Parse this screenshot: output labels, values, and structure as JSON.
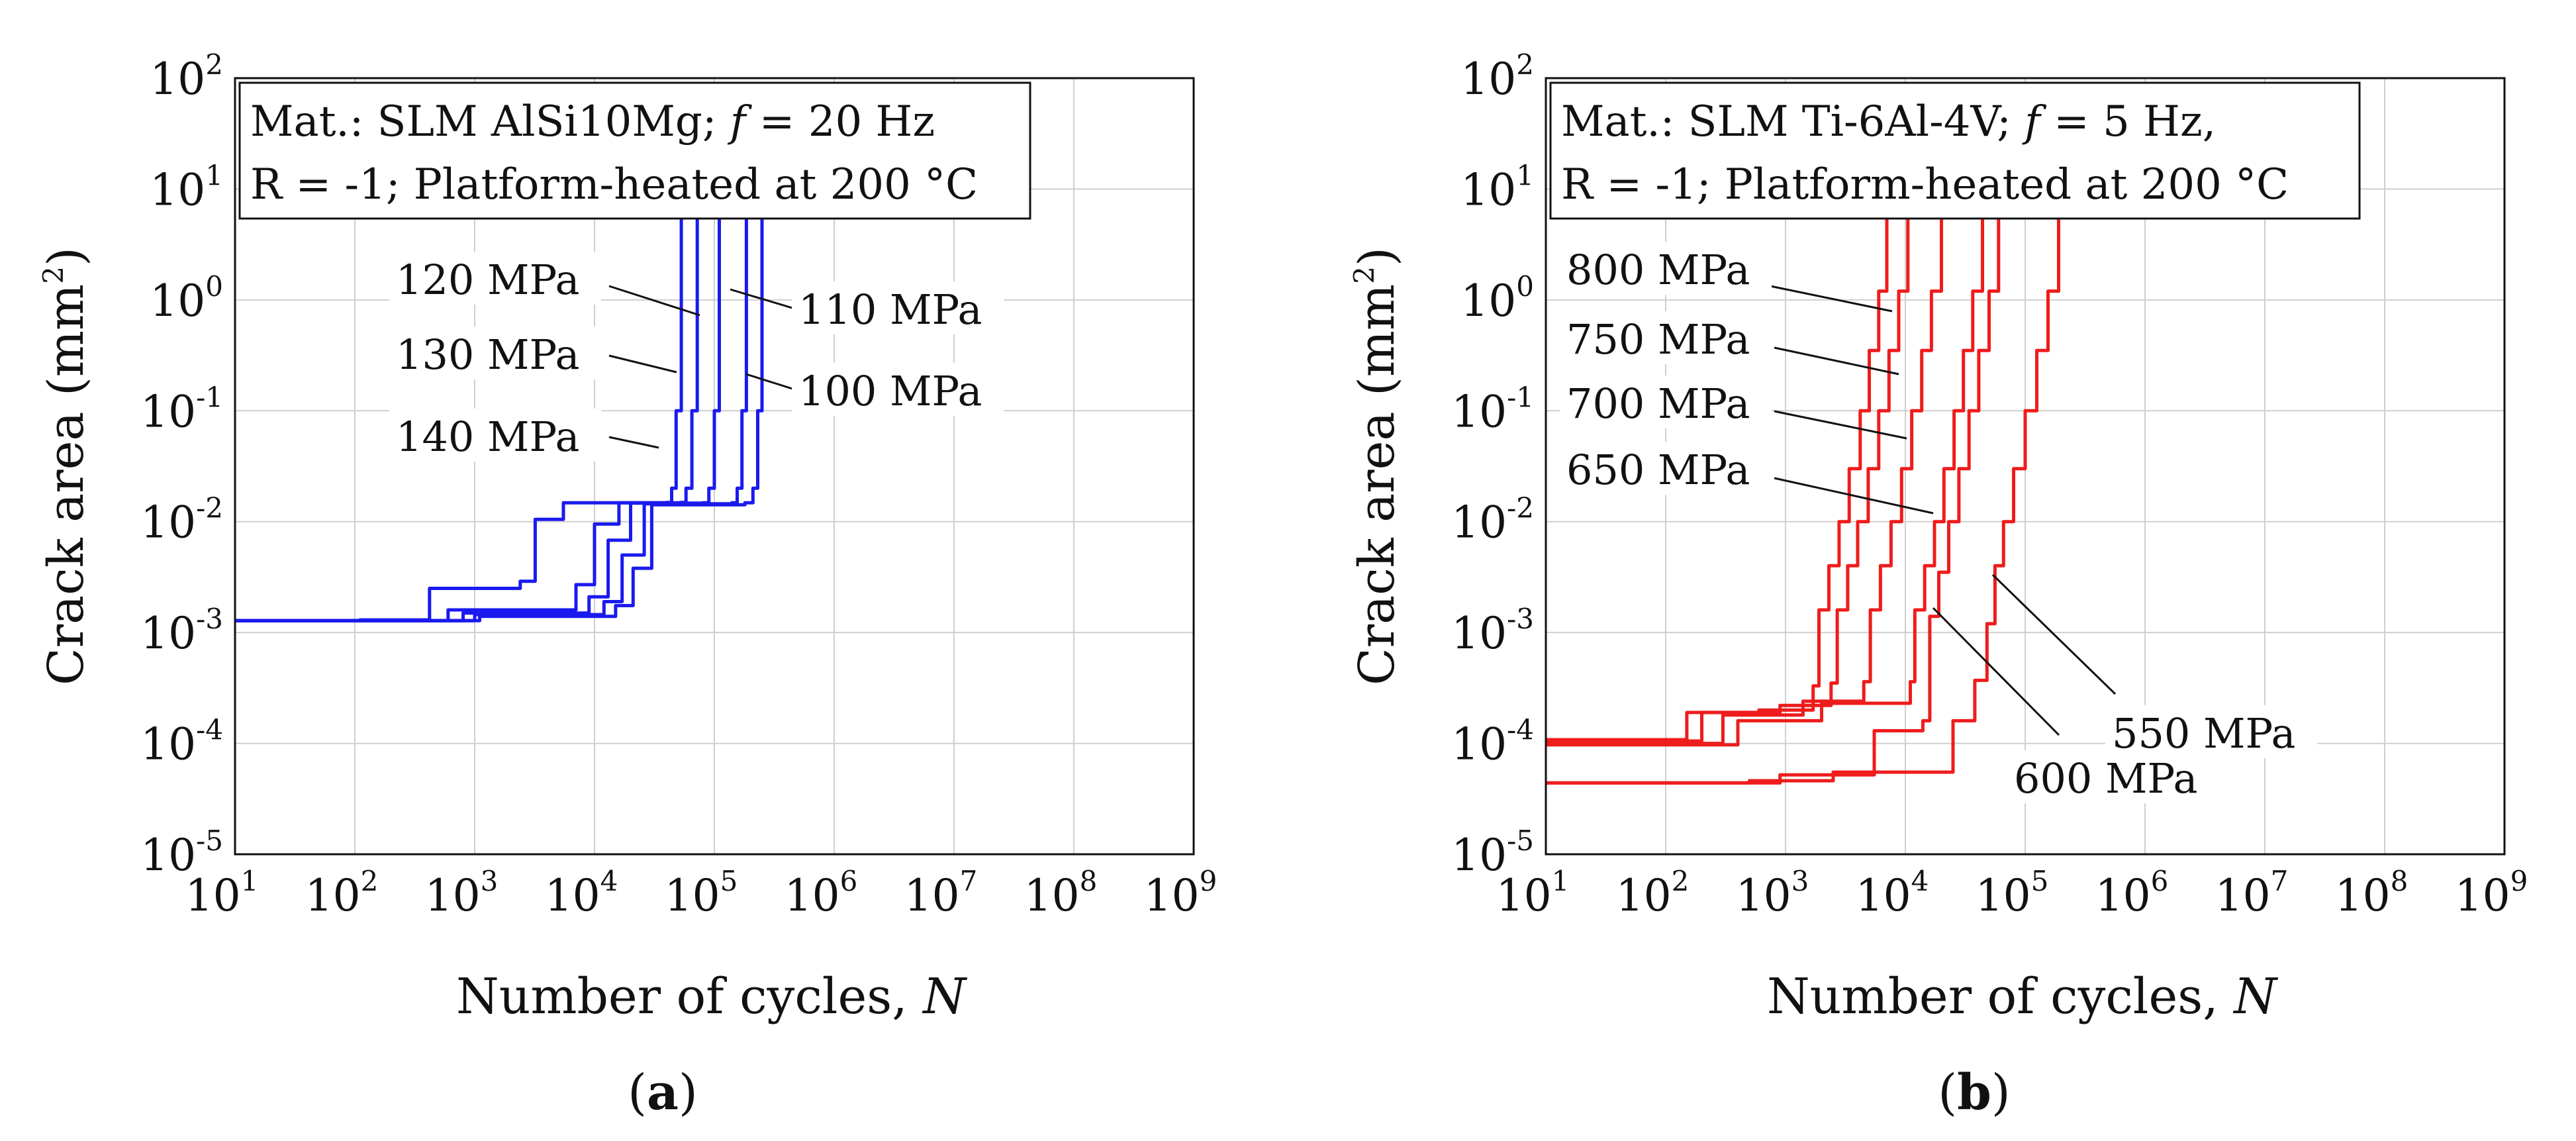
{
  "chart_data": [
    {
      "id": "a",
      "type": "line",
      "subfigure_label": "a",
      "info_line1": {
        "prefix": "Mat.: SLM AlSi10Mg; ",
        "f_symbol": "f",
        "suffix": " = 20 Hz"
      },
      "info_line2": "R = -1; Platform-heated at 200 °C",
      "xlabel": {
        "text": "Number of cycles, ",
        "symbol": "N"
      },
      "ylabel": {
        "text": "Crack area (mm",
        "sup": "2",
        "close": ")"
      },
      "x_scale": "log",
      "y_scale": "log",
      "xlim": [
        10,
        1000000000
      ],
      "ylim": [
        1e-05,
        100
      ],
      "grid": true,
      "color": "#1a1aee",
      "x_ticks": [
        {
          "base": "10",
          "exp": "1"
        },
        {
          "base": "10",
          "exp": "2"
        },
        {
          "base": "10",
          "exp": "3"
        },
        {
          "base": "10",
          "exp": "4"
        },
        {
          "base": "10",
          "exp": "5"
        },
        {
          "base": "10",
          "exp": "6"
        },
        {
          "base": "10",
          "exp": "7"
        },
        {
          "base": "10",
          "exp": "8"
        },
        {
          "base": "10",
          "exp": "9"
        }
      ],
      "y_ticks": [
        {
          "base": "10",
          "exp": "-5"
        },
        {
          "base": "10",
          "exp": "-4"
        },
        {
          "base": "10",
          "exp": "-3"
        },
        {
          "base": "10",
          "exp": "-2"
        },
        {
          "base": "10",
          "exp": "-1"
        },
        {
          "base": "10",
          "exp": "0"
        },
        {
          "base": "10",
          "exp": "1"
        },
        {
          "base": "10",
          "exp": "2"
        }
      ],
      "series": [
        {
          "name": "100 MPa",
          "x": [
            10,
            1100,
            15000,
            21000,
            30000,
            180000,
            210000,
            230000,
            250000
          ],
          "y": [
            0.00128,
            0.0014,
            0.00175,
            0.0038,
            0.0142,
            0.0148,
            0.02,
            0.1,
            8
          ]
        },
        {
          "name": "110 MPa",
          "x": [
            10,
            1000,
            12000,
            17000,
            26000,
            140000,
            155000,
            170000,
            185000
          ],
          "y": [
            0.00128,
            0.00145,
            0.0019,
            0.005,
            0.0145,
            0.0148,
            0.02,
            0.1,
            8
          ]
        },
        {
          "name": "120 MPa",
          "x": [
            10,
            800,
            9000,
            13000,
            20000,
            80000,
            90000,
            100000,
            110000
          ],
          "y": [
            0.00128,
            0.0015,
            0.0021,
            0.0068,
            0.0147,
            0.0148,
            0.02,
            0.1,
            8
          ]
        },
        {
          "name": "130 MPa",
          "x": [
            10,
            600,
            7000,
            10000,
            16000,
            52000,
            58000,
            65000,
            72000
          ],
          "y": [
            0.00128,
            0.0016,
            0.0027,
            0.0095,
            0.0148,
            0.0149,
            0.02,
            0.1,
            8
          ]
        },
        {
          "name": "140 MPa",
          "x": [
            10,
            110,
            420,
            2400,
            3200,
            5500,
            40000,
            44000,
            48000,
            53000
          ],
          "y": [
            0.00128,
            0.0013,
            0.0025,
            0.0029,
            0.0105,
            0.0148,
            0.0149,
            0.02,
            0.1,
            8
          ]
        }
      ],
      "annotations": [
        {
          "text": "120 MPa"
        },
        {
          "text": "130 MPa"
        },
        {
          "text": "140 MPa"
        },
        {
          "text": "110 MPa"
        },
        {
          "text": "100 MPa"
        }
      ]
    },
    {
      "id": "b",
      "type": "line",
      "subfigure_label": "b",
      "info_line1": {
        "prefix": "Mat.: SLM Ti-6Al-4V; ",
        "f_symbol": "f",
        "suffix": " = 5 Hz,"
      },
      "info_line2": "R = -1; Platform-heated at 200 °C",
      "xlabel": {
        "text": "Number of cycles, ",
        "symbol": "N"
      },
      "ylabel": {
        "text": "Crack area (mm",
        "sup": "2",
        "close": ")"
      },
      "x_scale": "log",
      "y_scale": "log",
      "xlim": [
        10,
        1000000000
      ],
      "ylim": [
        1e-05,
        100
      ],
      "grid": true,
      "color": "#ee1c1c",
      "x_ticks": [
        {
          "base": "10",
          "exp": "1"
        },
        {
          "base": "10",
          "exp": "2"
        },
        {
          "base": "10",
          "exp": "3"
        },
        {
          "base": "10",
          "exp": "4"
        },
        {
          "base": "10",
          "exp": "5"
        },
        {
          "base": "10",
          "exp": "6"
        },
        {
          "base": "10",
          "exp": "7"
        },
        {
          "base": "10",
          "exp": "8"
        },
        {
          "base": "10",
          "exp": "9"
        }
      ],
      "y_ticks": [
        {
          "base": "10",
          "exp": "-5"
        },
        {
          "base": "10",
          "exp": "-4"
        },
        {
          "base": "10",
          "exp": "-3"
        },
        {
          "base": "10",
          "exp": "-2"
        },
        {
          "base": "10",
          "exp": "-1"
        },
        {
          "base": "10",
          "exp": "0"
        },
        {
          "base": "10",
          "exp": "1"
        },
        {
          "base": "10",
          "exp": "2"
        }
      ],
      "series": [
        {
          "name": "800 MPa",
          "x": [
            10,
            150,
            600,
            1700,
            1900,
            2300,
            2800,
            3400,
            4200,
            5000,
            6000,
            7000
          ],
          "y": [
            0.000108,
            0.00019,
            0.0002,
            0.00033,
            0.0016,
            0.004,
            0.01,
            0.03,
            0.1,
            0.35,
            1.2,
            8
          ]
        },
        {
          "name": "750 MPa",
          "x": [
            10,
            200,
            900,
            2400,
            2700,
            3300,
            4000,
            4900,
            6000,
            7300,
            8800,
            10500
          ],
          "y": [
            0.000105,
            0.00019,
            0.00022,
            0.00035,
            0.0016,
            0.004,
            0.01,
            0.03,
            0.1,
            0.35,
            1.2,
            8
          ]
        },
        {
          "name": "700 MPa",
          "x": [
            10,
            300,
            1400,
            4500,
            5100,
            6200,
            7600,
            9300,
            11300,
            13700,
            16500,
            20000
          ],
          "y": [
            0.0001,
            0.00018,
            0.00024,
            0.00036,
            0.0016,
            0.004,
            0.01,
            0.03,
            0.1,
            0.35,
            1.2,
            8
          ]
        },
        {
          "name": "650 MPa",
          "x": [
            10,
            400,
            2000,
            11000,
            12000,
            14500,
            17500,
            21000,
            25500,
            30500,
            36500,
            44000
          ],
          "y": [
            9.7e-05,
            0.00016,
            0.00023,
            0.00036,
            0.0016,
            0.004,
            0.01,
            0.03,
            0.1,
            0.35,
            1.2,
            8
          ]
        },
        {
          "name": "600 MPa",
          "x": [
            10,
            900,
            5500,
            14000,
            16000,
            19000,
            23000,
            28000,
            34000,
            41000,
            50000,
            60000
          ],
          "y": [
            4.4e-05,
            5.2e-05,
            0.00013,
            0.00016,
            0.0014,
            0.0035,
            0.01,
            0.03,
            0.1,
            0.35,
            1.2,
            8
          ]
        },
        {
          "name": "550 MPa",
          "x": [
            10,
            500,
            2500,
            25000,
            38000,
            48000,
            56000,
            66000,
            80000,
            100000,
            125000,
            155000,
            190000
          ],
          "y": [
            4.4e-05,
            4.6e-05,
            5.5e-05,
            0.00016,
            0.00037,
            0.0012,
            0.004,
            0.01,
            0.03,
            0.1,
            0.35,
            1.2,
            8
          ]
        }
      ],
      "annotations": [
        {
          "text": "800 MPa"
        },
        {
          "text": "750 MPa"
        },
        {
          "text": "700 MPa"
        },
        {
          "text": "650 MPa"
        },
        {
          "text": "550 MPa"
        },
        {
          "text": "600 MPa"
        }
      ]
    }
  ]
}
